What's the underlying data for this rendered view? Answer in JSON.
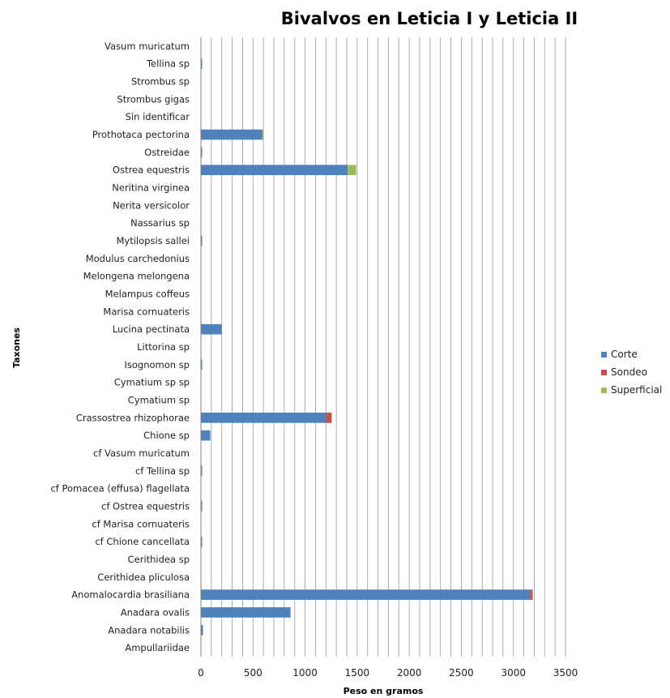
{
  "chart_data": {
    "type": "bar",
    "orientation": "horizontal",
    "stacked": true,
    "title": "Bivalvos en Leticia I y Leticia II",
    "xlabel": "Peso en gramos",
    "ylabel": "Taxones",
    "xlim": [
      0,
      3500
    ],
    "x_ticks": [
      0,
      500,
      1000,
      1500,
      2000,
      2500,
      3000,
      3500
    ],
    "grid": "vertical",
    "legend_position": "right",
    "categories": [
      "Vasum muricatum",
      "Tellina sp",
      "Strombus sp",
      "Strombus gigas",
      "Sin identificar",
      "Prothotaca  pectorina",
      "Ostreidae",
      "Ostrea equestris",
      "Neritina virginea",
      "Nerita versicolor",
      "Nassarius sp",
      "Mytilopsis sallei",
      "Modulus carchedonius",
      "Melongena melongena",
      "Melampus coffeus",
      "Marisa cornuateris",
      "Lucina pectinata",
      "Littorina sp",
      "Isognomon sp",
      "Cymatium sp sp",
      "Cymatium sp",
      "Crassostrea rhizophorae",
      "Chione sp",
      "cf Vasum muricatum",
      "cf Tellina sp",
      "cf Pomacea (effusa) flagellata",
      "cf Ostrea equestris",
      "cf Marisa cornuateris",
      "cf Chione cancellata",
      "Cerithidea sp",
      "Cerithidea pliculosa",
      "Anomalocardia brasiliana",
      "Anadara ovalis",
      "Anadara notabilis",
      "Ampullariidae"
    ],
    "series": [
      {
        "name": "Corte",
        "color": "#4f81bd",
        "values": [
          0,
          10,
          0,
          0,
          0,
          590,
          10,
          1410,
          0,
          0,
          0,
          10,
          0,
          0,
          0,
          0,
          200,
          0,
          10,
          0,
          0,
          1200,
          90,
          0,
          10,
          0,
          10,
          0,
          10,
          0,
          0,
          3160,
          860,
          20,
          0
        ]
      },
      {
        "name": "Sondeo",
        "color": "#c0504d",
        "values": [
          0,
          0,
          0,
          0,
          0,
          0,
          0,
          0,
          0,
          0,
          0,
          0,
          0,
          0,
          0,
          0,
          0,
          0,
          0,
          0,
          0,
          55,
          0,
          0,
          0,
          0,
          0,
          0,
          0,
          0,
          0,
          25,
          0,
          0,
          0
        ]
      },
      {
        "name": "Superficial",
        "color": "#9bbb59",
        "values": [
          0,
          0,
          0,
          0,
          0,
          5,
          0,
          80,
          0,
          0,
          0,
          0,
          0,
          0,
          0,
          0,
          0,
          0,
          0,
          0,
          0,
          0,
          0,
          0,
          0,
          0,
          0,
          0,
          0,
          0,
          0,
          0,
          0,
          0,
          0
        ]
      }
    ]
  }
}
